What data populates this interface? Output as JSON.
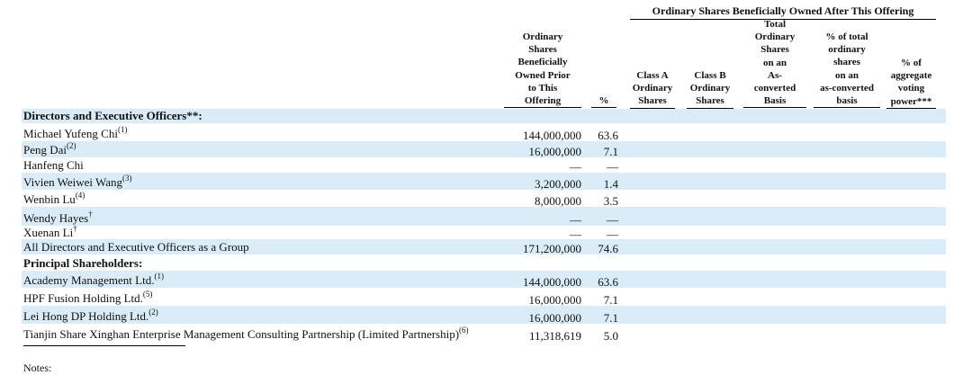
{
  "header": {
    "group_title": "Ordinary Shares Beneficially Owned After This Offering",
    "col_prior": [
      "Ordinary",
      "Shares",
      "Beneficially",
      "Owned Prior",
      "to This",
      "Offering"
    ],
    "col_pct": [
      "%"
    ],
    "col_class_a": [
      "Class A",
      "Ordinary",
      "Shares"
    ],
    "col_class_b": [
      "Class B",
      "Ordinary",
      "Shares"
    ],
    "col_total": [
      "Total",
      "Ordinary",
      "Shares",
      "on an",
      "As-",
      "converted",
      "Basis"
    ],
    "col_pct_total": [
      "% of total",
      "ordinary",
      "shares",
      "on an",
      "as-converted",
      "basis"
    ],
    "col_voting": [
      "% of",
      "aggregate",
      "voting",
      "power***"
    ]
  },
  "rows": [
    {
      "name": "Directors and Executive Officers**:",
      "sup": "",
      "shares": "",
      "pct": "",
      "section": true
    },
    {
      "name": "Michael Yufeng Chi",
      "sup": "(1)",
      "shares": "144,000,000",
      "pct": "63.6"
    },
    {
      "name": "Peng Dai",
      "sup": "(2)",
      "shares": "16,000,000",
      "pct": "7.1"
    },
    {
      "name": "Hanfeng Chi",
      "sup": "",
      "shares": "—",
      "pct": "—"
    },
    {
      "name": "Vivien Weiwei Wang",
      "sup": "(3)",
      "shares": "3,200,000",
      "pct": "1.4"
    },
    {
      "name": "Wenbin Lu",
      "sup": "(4)",
      "shares": "8,000,000",
      "pct": "3.5"
    },
    {
      "name": "Wendy Hayes",
      "sup": "†",
      "shares": "—",
      "pct": "—"
    },
    {
      "name": "Xuenan Li",
      "sup": "†",
      "shares": "—",
      "pct": "—"
    },
    {
      "name": "All Directors and Executive Officers as a Group",
      "sup": "",
      "shares": "171,200,000",
      "pct": "74.6"
    },
    {
      "name": "Principal Shareholders:",
      "sup": "",
      "shares": "",
      "pct": "",
      "section": true
    },
    {
      "name": "Academy Management Ltd.",
      "sup": "(1)",
      "shares": "144,000,000",
      "pct": "63.6"
    },
    {
      "name": "HPF Fusion Holding Ltd.",
      "sup": "(5)",
      "shares": "16,000,000",
      "pct": "7.1"
    },
    {
      "name": "Lei Hong DP Holding Ltd.",
      "sup": "(2)",
      "shares": "16,000,000",
      "pct": "7.1"
    },
    {
      "name": "Tianjin Share Xinghan Enterprise Management Consulting Partnership (Limited Partnership)",
      "sup": "(6)",
      "shares": "11,318,619",
      "pct": "5.0"
    }
  ],
  "notes_label": "Notes:"
}
